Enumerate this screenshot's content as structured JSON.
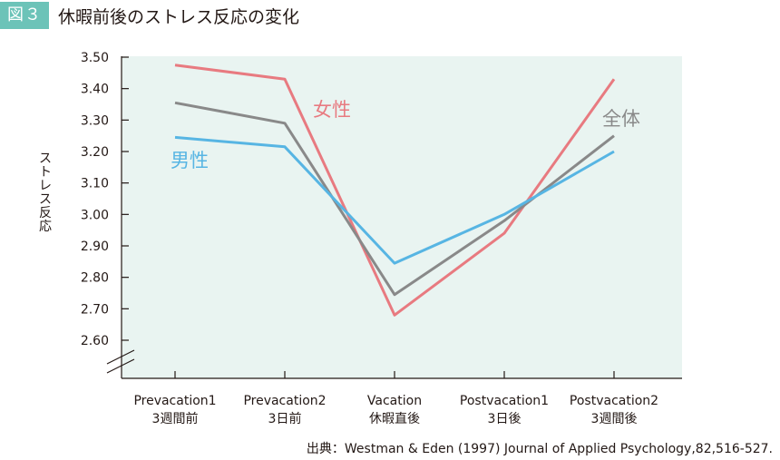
{
  "figure": {
    "badge": "図３",
    "title": "休暇前後のストレス反応の変化",
    "source": "出典：Westman & Eden (1997) Journal of Applied Psychology,82,516-527."
  },
  "colors": {
    "plot_bg": "#e9f4f1",
    "axis": "#231815",
    "badge": "#6cc3b8"
  },
  "chart_data": {
    "type": "line",
    "ylabel": "ストレス反応",
    "ylim": [
      2.6,
      3.5
    ],
    "yticks": [
      "3.50",
      "3.40",
      "3.30",
      "3.20",
      "3.10",
      "3.00",
      "2.90",
      "2.80",
      "2.70",
      "2.60"
    ],
    "axis_break": true,
    "categories": [
      [
        "Prevacation1",
        "3週間前"
      ],
      [
        "Prevacation2",
        "3日前"
      ],
      [
        "Vacation",
        "休暇直後"
      ],
      [
        "Postvacation1",
        "3日後"
      ],
      [
        "Postvacation2",
        "3週間後"
      ]
    ],
    "series": [
      {
        "name": "女性",
        "color": "#e87a80",
        "values": [
          3.475,
          3.43,
          2.68,
          2.94,
          3.43
        ]
      },
      {
        "name": "全体",
        "color": "#898989",
        "values": [
          3.355,
          3.29,
          2.745,
          2.98,
          3.25
        ]
      },
      {
        "name": "男性",
        "color": "#57b5e3",
        "values": [
          3.245,
          3.215,
          2.845,
          3.0,
          3.2
        ]
      }
    ]
  }
}
